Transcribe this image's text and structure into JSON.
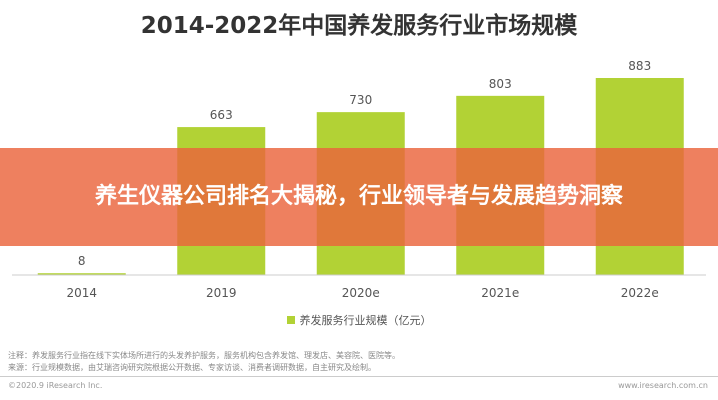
{
  "overlay": {
    "text": "养生仪器公司排名大揭秘，行业领导者与发展趋势洞察"
  },
  "notes": {
    "line1": "注释：养发服务行业指在线下实体场所进行的头发养护服务，服务机构包含养发馆、理发店、美容院、医院等。",
    "line2": "来源：行业规模数据，由艾瑞咨询研究院根据公开数据、专家访谈、消费者调研数据，自主研究及绘制。"
  },
  "footer": {
    "copyright": "©2020.9 iResearch Inc.",
    "website": "www.iresearch.com.cn"
  },
  "colors": {
    "bar": "#b2d235",
    "overlay": "#ea643c"
  },
  "chart_data": {
    "type": "bar",
    "title": "2014-2022年中国养发服务行业市场规模",
    "categories": [
      "2014",
      "2019",
      "2020e",
      "2021e",
      "2022e"
    ],
    "series": [
      {
        "name": "养发服务行业规模（亿元）",
        "values": [
          8,
          663,
          730,
          803,
          883
        ]
      }
    ],
    "ylim": [
      0,
      883
    ],
    "grid": false,
    "legend": "bottom-center"
  }
}
